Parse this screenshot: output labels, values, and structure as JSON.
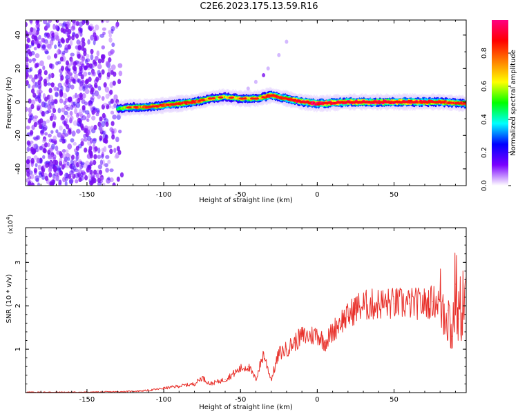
{
  "title": "C2E6.2023.175.13.59.R16",
  "chart_data": [
    {
      "type": "heatmap",
      "xlabel": "Height of straight line (km)",
      "ylabel": "Frequency (Hz)",
      "xlim": [
        -190,
        97
      ],
      "ylim": [
        -50,
        49
      ],
      "xticks": [
        -150,
        -100,
        -50,
        0,
        50
      ],
      "yticks": [
        -40,
        -20,
        0,
        20,
        40
      ],
      "colorbar": {
        "label": "Normalized spectral amplitude",
        "range": [
          0,
          1
        ],
        "ticks": [
          0.0,
          0.2,
          0.4,
          0.6,
          0.8
        ],
        "colors": [
          "#ffffff",
          "#7a00ff",
          "#0000ff",
          "#00ffff",
          "#00ff00",
          "#ffff00",
          "#ff8000",
          "#ff0000",
          "#ff0080"
        ]
      },
      "ridge": {
        "x": [
          -130,
          -120,
          -110,
          -100,
          -90,
          -80,
          -70,
          -60,
          -50,
          -40,
          -30,
          -20,
          -10,
          0,
          20,
          40,
          60,
          80,
          97
        ],
        "y": [
          -4,
          -3,
          -3,
          -2,
          -1,
          0,
          2,
          3,
          2,
          2,
          4,
          2,
          0,
          -1,
          0,
          0,
          0,
          0,
          -1
        ],
        "amplitude": [
          0.35,
          0.6,
          0.65,
          0.7,
          0.7,
          0.75,
          0.55,
          0.5,
          0.55,
          0.6,
          0.75,
          0.7,
          0.85,
          0.9,
          0.9,
          0.9,
          0.85,
          0.75,
          0.7
        ]
      },
      "noise_region": {
        "x": [
          -190,
          -125
        ],
        "amplitude": [
          0.05,
          0.2
        ]
      },
      "grid": false
    },
    {
      "type": "line",
      "xlabel": "Height of straight line (km)",
      "ylabel": "SNR (10 * v/v)",
      "yscale_label": "(x10",
      "yscale_exp": "4",
      "yscale_close": ")",
      "xlim": [
        -190,
        97
      ],
      "ylim": [
        0,
        3.8
      ],
      "xticks": [
        -150,
        -100,
        -50,
        0,
        50
      ],
      "yticks": [
        1,
        2,
        3
      ],
      "color": "#e8302a",
      "series": [
        {
          "x": [
            -190,
            -170,
            -150,
            -130,
            -120,
            -110,
            -100,
            -90,
            -80,
            -75,
            -70,
            -60,
            -50,
            -45,
            -40,
            -35,
            -30,
            -25,
            -20,
            -15,
            -10,
            -5,
            0,
            5,
            10,
            15,
            20,
            25,
            30,
            40,
            50,
            60,
            70,
            75,
            80,
            85,
            88,
            90,
            92,
            95,
            97
          ],
          "y": [
            0.01,
            0.01,
            0.01,
            0.02,
            0.03,
            0.05,
            0.1,
            0.15,
            0.2,
            0.35,
            0.2,
            0.3,
            0.55,
            0.6,
            0.3,
            0.9,
            0.3,
            0.9,
            1.0,
            1.15,
            1.3,
            1.3,
            1.35,
            1.15,
            1.4,
            1.65,
            1.75,
            1.95,
            2.0,
            2.05,
            2.05,
            2.05,
            2.05,
            2.1,
            2.1,
            1.9,
            1.3,
            2.5,
            1.7,
            2.2,
            2.0
          ]
        }
      ],
      "grid": false
    }
  ]
}
